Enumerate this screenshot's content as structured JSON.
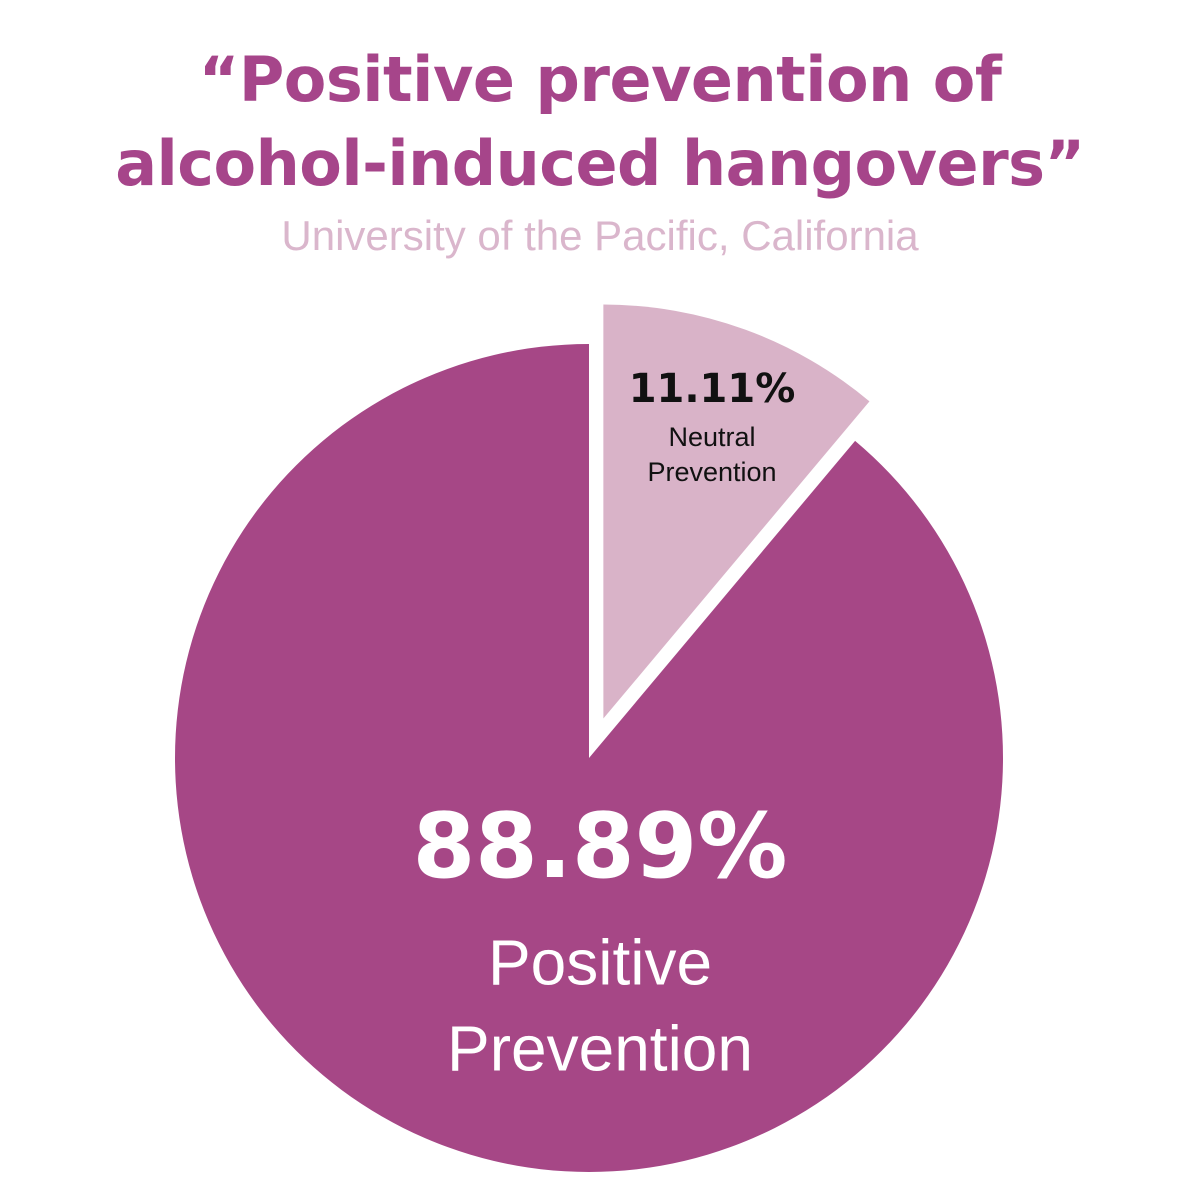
{
  "chart_data": {
    "type": "pie",
    "title_line1": "“Positive prevention of",
    "title_line2": "alcohol-induced hangovers”",
    "subtitle": "University of the Pacific, California",
    "slices": [
      {
        "label_line1": "Neutral",
        "label_line2": "Prevention",
        "value": 11.11,
        "value_label": "11.11%",
        "color": "#d9b3c8",
        "text_color": "#111111",
        "exploded": true
      },
      {
        "label_line1": "Positive",
        "label_line2": "Prevention",
        "value": 88.89,
        "value_label": "88.89%",
        "color": "#a64786",
        "text_color": "#ffffff",
        "exploded": false
      }
    ]
  }
}
